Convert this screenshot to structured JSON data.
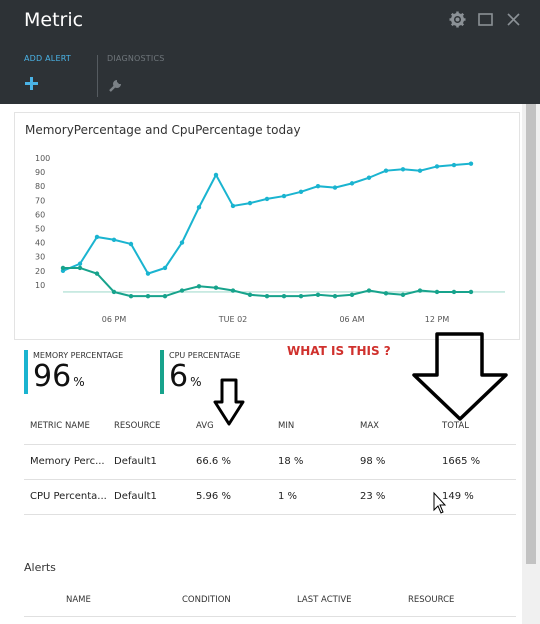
{
  "header": {
    "title": "Metric",
    "commands": [
      {
        "label": "ADD ALERT",
        "icon": "plus-icon"
      },
      {
        "label": "DIAGNOSTICS",
        "icon": "wrench-icon"
      }
    ],
    "window_controls": [
      "gear-icon",
      "maximize-icon",
      "close-icon"
    ]
  },
  "chart": {
    "title": "MemoryPercentage and CpuPercentage today",
    "annotation": "WHAT IS THIS ?"
  },
  "chart_data": {
    "type": "line",
    "title": "MemoryPercentage and CpuPercentage today",
    "x_ticks": [
      "06 PM",
      "TUE 02",
      "06 AM",
      "12 PM"
    ],
    "x_tick_positions": [
      3,
      10,
      17,
      22
    ],
    "x_range": [
      0,
      26
    ],
    "ylim": [
      0,
      100
    ],
    "y_ticks": [
      10,
      20,
      30,
      40,
      50,
      60,
      70,
      80,
      90,
      100
    ],
    "grid": false,
    "legend": "none",
    "series": [
      {
        "color": "#1ab4d0",
        "values": [
          20,
          25,
          44,
          42,
          39,
          18,
          22,
          40,
          65,
          88,
          66,
          68,
          71,
          73,
          76,
          80,
          79,
          82,
          86,
          91,
          92,
          91,
          94,
          95,
          96
        ]
      },
      {
        "color": "#17a38c",
        "values": [
          22,
          22,
          18,
          5,
          2,
          2,
          2,
          6,
          9,
          8,
          6,
          3,
          2,
          2,
          2,
          3,
          2,
          3,
          6,
          4,
          3,
          6,
          5,
          5,
          5
        ]
      }
    ],
    "reference_line": {
      "color": "#a6dccf",
      "value": 5
    }
  },
  "tiles": [
    {
      "label": "MEMORY PERCENTAGE",
      "value": "96",
      "unit": "%",
      "color": "#1ab4d0"
    },
    {
      "label": "CPU PERCENTAGE",
      "value": "6",
      "unit": "%",
      "color": "#17a38c"
    }
  ],
  "metrics_table": {
    "columns": [
      "METRIC NAME",
      "RESOURCE",
      "AVG",
      "MIN",
      "MAX",
      "TOTAL"
    ],
    "rows": [
      [
        "Memory Perc...",
        "Default1",
        "66.6 %",
        "18 %",
        "98 %",
        "1665 %"
      ],
      [
        "CPU Percenta...",
        "Default1",
        "5.96 %",
        "1 %",
        "23 %",
        "149 %"
      ]
    ]
  },
  "alerts": {
    "title": "Alerts",
    "columns": [
      "NAME",
      "CONDITION",
      "LAST ACTIVE",
      "RESOURCE"
    ]
  }
}
